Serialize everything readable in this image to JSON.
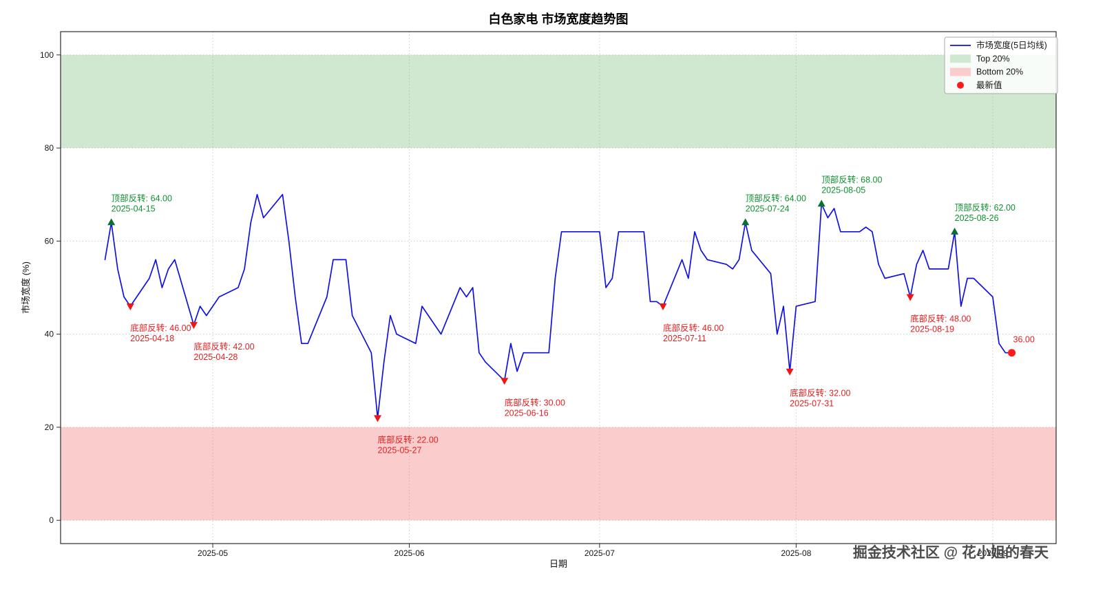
{
  "title": "白色家电 市场宽度趋势图",
  "watermark": "掘金技术社区 @ 花小姐的春天",
  "chart_data": {
    "type": "line",
    "title": "白色家电 市场宽度趋势图",
    "xlabel": "日期",
    "ylabel": "市场宽度 (%)",
    "series_name": "市场宽度(5日均线)",
    "xlim": [
      "2025-04-07",
      "2025-09-11"
    ],
    "ylim": [
      -5,
      105
    ],
    "grid": true,
    "legend_position": "upper right",
    "yticks": [
      0,
      20,
      40,
      60,
      80,
      100
    ],
    "xticks": [
      {
        "date": "2025-05-01",
        "label": "2025-05"
      },
      {
        "date": "2025-06-01",
        "label": "2025-06"
      },
      {
        "date": "2025-07-01",
        "label": "2025-07"
      },
      {
        "date": "2025-08-01",
        "label": "2025-08"
      },
      {
        "date": "2025-09-01",
        "label": "2025-09"
      }
    ],
    "bands": [
      {
        "label": "Top 20%",
        "from": 80,
        "to": 100,
        "color": "#cfe8cf"
      },
      {
        "label": "Bottom 20%",
        "from": 0,
        "to": 20,
        "color": "#fbcccc"
      }
    ],
    "line_color": "#1010e6",
    "colors": {
      "top_text": "#109030",
      "top_marker": "#0a7030",
      "bottom_text": "#e32020",
      "bottom_marker": "#ef1515",
      "latest_dot": "#ff1a1a"
    },
    "dates": [
      "2025-04-14",
      "2025-04-15",
      "2025-04-16",
      "2025-04-17",
      "2025-04-18",
      "2025-04-21",
      "2025-04-22",
      "2025-04-23",
      "2025-04-24",
      "2025-04-25",
      "2025-04-28",
      "2025-04-29",
      "2025-04-30",
      "2025-05-01",
      "2025-05-02",
      "2025-05-05",
      "2025-05-06",
      "2025-05-07",
      "2025-05-08",
      "2025-05-09",
      "2025-05-12",
      "2025-05-13",
      "2025-05-14",
      "2025-05-15",
      "2025-05-16",
      "2025-05-19",
      "2025-05-20",
      "2025-05-21",
      "2025-05-22",
      "2025-05-23",
      "2025-05-26",
      "2025-05-27",
      "2025-05-28",
      "2025-05-29",
      "2025-05-30",
      "2025-06-02",
      "2025-06-03",
      "2025-06-04",
      "2025-06-05",
      "2025-06-06",
      "2025-06-09",
      "2025-06-10",
      "2025-06-11",
      "2025-06-12",
      "2025-06-13",
      "2025-06-16",
      "2025-06-17",
      "2025-06-18",
      "2025-06-19",
      "2025-06-20",
      "2025-06-23",
      "2025-06-24",
      "2025-06-25",
      "2025-06-26",
      "2025-06-27",
      "2025-06-30",
      "2025-07-01",
      "2025-07-02",
      "2025-07-03",
      "2025-07-04",
      "2025-07-07",
      "2025-07-08",
      "2025-07-09",
      "2025-07-10",
      "2025-07-11",
      "2025-07-14",
      "2025-07-15",
      "2025-07-16",
      "2025-07-17",
      "2025-07-18",
      "2025-07-21",
      "2025-07-22",
      "2025-07-23",
      "2025-07-24",
      "2025-07-25",
      "2025-07-28",
      "2025-07-29",
      "2025-07-30",
      "2025-07-31",
      "2025-08-01",
      "2025-08-04",
      "2025-08-05",
      "2025-08-06",
      "2025-08-07",
      "2025-08-08",
      "2025-08-11",
      "2025-08-12",
      "2025-08-13",
      "2025-08-14",
      "2025-08-15",
      "2025-08-18",
      "2025-08-19",
      "2025-08-20",
      "2025-08-21",
      "2025-08-22",
      "2025-08-25",
      "2025-08-26",
      "2025-08-27",
      "2025-08-28",
      "2025-08-29",
      "2025-09-01",
      "2025-09-02",
      "2025-09-03",
      "2025-09-04"
    ],
    "values": [
      56,
      64,
      54,
      48,
      46,
      52,
      56,
      50,
      54,
      56,
      42,
      46,
      44,
      46,
      48,
      50,
      54,
      64,
      70,
      65,
      70,
      60,
      48,
      38,
      38,
      48,
      56,
      56,
      56,
      44,
      36,
      22,
      34,
      44,
      40,
      38,
      46,
      44,
      42,
      40,
      50,
      48,
      50,
      36,
      34,
      30,
      38,
      32,
      36,
      36,
      36,
      52,
      62,
      62,
      62,
      62,
      62,
      50,
      52,
      62,
      62,
      62,
      47,
      47,
      46,
      56,
      52,
      62,
      58,
      56,
      55,
      54,
      56,
      64,
      58,
      53,
      40,
      46,
      32,
      46,
      47,
      68,
      65,
      67,
      62,
      62,
      63,
      62,
      55,
      52,
      53,
      48,
      55,
      58,
      54,
      54,
      62,
      46,
      52,
      52,
      48,
      38,
      36,
      36
    ],
    "annotations": [
      {
        "kind": "top",
        "label": "顶部反转: 64.00",
        "date": "2025-04-15",
        "value": 64
      },
      {
        "kind": "bottom",
        "label": "底部反转: 46.00",
        "date": "2025-04-18",
        "value": 46
      },
      {
        "kind": "bottom",
        "label": "底部反转: 42.00",
        "date": "2025-04-28",
        "value": 42
      },
      {
        "kind": "bottom",
        "label": "底部反转: 22.00",
        "date": "2025-05-27",
        "value": 22
      },
      {
        "kind": "bottom",
        "label": "底部反转: 30.00",
        "date": "2025-06-16",
        "value": 30
      },
      {
        "kind": "bottom",
        "label": "底部反转: 46.00",
        "date": "2025-07-11",
        "value": 46
      },
      {
        "kind": "top",
        "label": "顶部反转: 64.00",
        "date": "2025-07-24",
        "value": 64
      },
      {
        "kind": "bottom",
        "label": "底部反转: 32.00",
        "date": "2025-07-31",
        "value": 32
      },
      {
        "kind": "top",
        "label": "顶部反转: 68.00",
        "date": "2025-08-05",
        "value": 68
      },
      {
        "kind": "bottom",
        "label": "底部反转: 48.00",
        "date": "2025-08-19",
        "value": 48
      },
      {
        "kind": "top",
        "label": "顶部反转: 62.00",
        "date": "2025-08-26",
        "value": 62
      }
    ],
    "latest": {
      "label": "36.00",
      "date": "2025-09-04",
      "value": 36
    },
    "legend": {
      "items": [
        {
          "label": "市场宽度(5日均线)",
          "swatch": "line",
          "color": "#1010e6"
        },
        {
          "label": "Top 20%",
          "swatch": "patch",
          "color": "#cfe8cf"
        },
        {
          "label": "Bottom 20%",
          "swatch": "patch",
          "color": "#fbcccc"
        },
        {
          "label": "最新值",
          "swatch": "dot",
          "color": "#ff1a1a"
        }
      ]
    }
  }
}
